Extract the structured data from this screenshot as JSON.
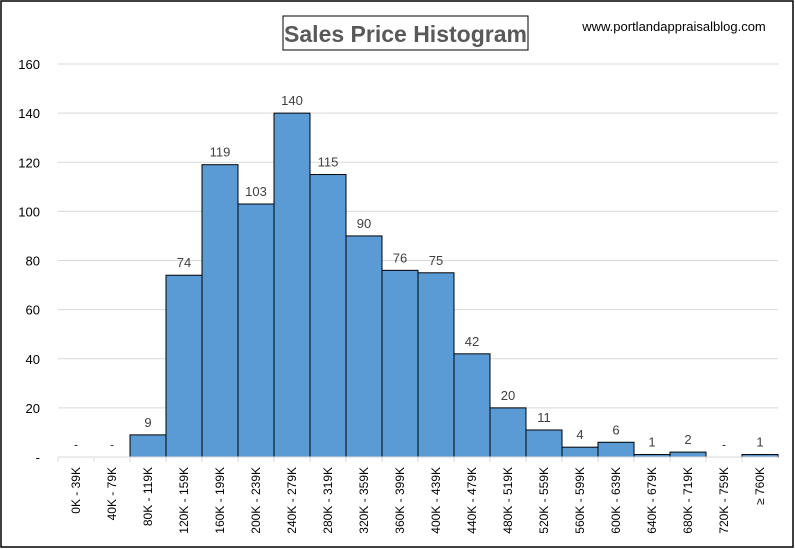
{
  "chart_data": {
    "type": "bar",
    "title": "Sales Price Histogram",
    "annotation": "www.portlandappraisalblog.com",
    "xlabel": "",
    "ylabel": "",
    "categories": [
      "0K - 39K",
      "40K - 79K",
      "80K - 119K",
      "120K - 159K",
      "160K - 199K",
      "200K - 239K",
      "240K - 279K",
      "280K - 319K",
      "320K - 359K",
      "360K - 399K",
      "400K - 439K",
      "440K - 479K",
      "480K - 519K",
      "520K - 559K",
      "560K - 599K",
      "600K - 639K",
      "640K - 679K",
      "680K - 719K",
      "720K - 759K",
      "≥ 760K"
    ],
    "values": [
      0,
      0,
      9,
      74,
      119,
      103,
      140,
      115,
      90,
      76,
      75,
      42,
      20,
      11,
      4,
      6,
      1,
      2,
      0,
      1
    ],
    "data_labels": [
      "-",
      "-",
      "9",
      "74",
      "119",
      "103",
      "140",
      "115",
      "90",
      "76",
      "75",
      "42",
      "20",
      "11",
      "4",
      "6",
      "1",
      "2",
      "-",
      "1"
    ],
    "ylim": [
      0,
      160
    ],
    "yticks": [
      0,
      20,
      40,
      60,
      80,
      100,
      120,
      140,
      160
    ],
    "ytick_labels": [
      "-",
      "20",
      "40",
      "60",
      "80",
      "100",
      "120",
      "140",
      "160"
    ],
    "grid": true,
    "bar_color": "#5b9bd5",
    "bar_edge_color": "#000000",
    "legend": "none"
  }
}
